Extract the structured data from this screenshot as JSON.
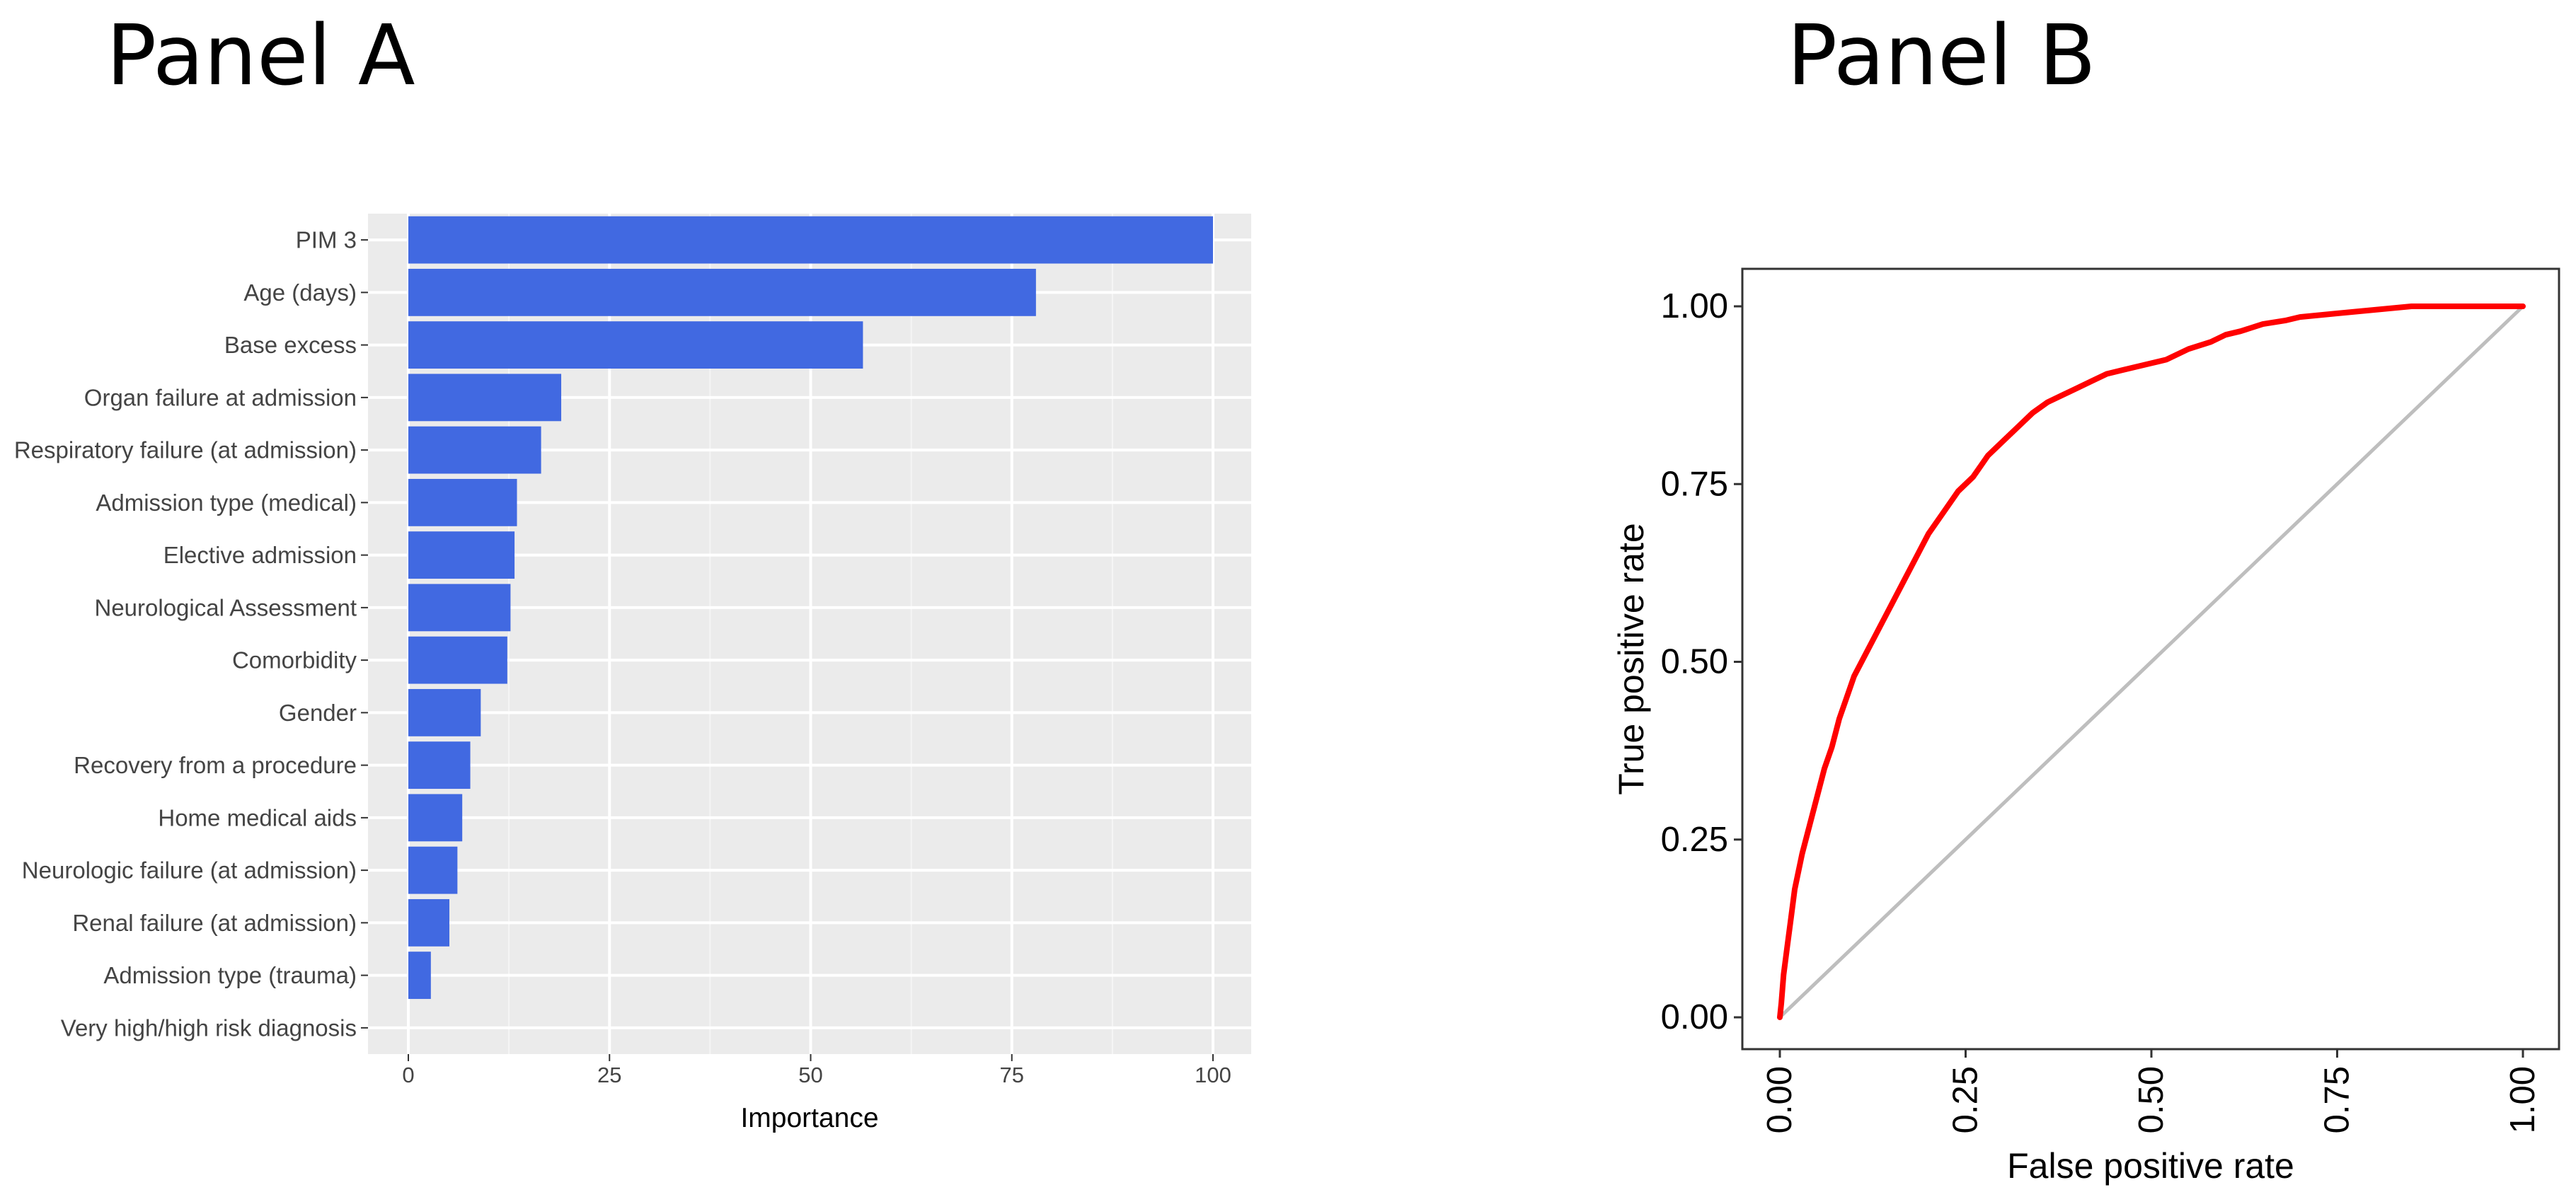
{
  "panels": {
    "a": {
      "title": "Panel A"
    },
    "b": {
      "title": "Panel B"
    }
  },
  "chart_data": [
    {
      "type": "bar",
      "orientation": "horizontal",
      "title": "",
      "xlabel": "Importance",
      "ylabel": "",
      "xlim": [
        0,
        100
      ],
      "xticks": [
        "0",
        "25",
        "50",
        "75",
        "100"
      ],
      "grid": true,
      "background": "#ebebeb",
      "bar_color": "#4169e1",
      "categories": [
        "PIM 3",
        "Age (days)",
        "Base excess",
        "Organ failure at admission",
        "Respiratory failure (at admission)",
        "Admission type (medical)",
        "Elective admission",
        "Neurological Assessment",
        "Comorbidity",
        "Gender",
        "Recovery from a procedure",
        "Home medical aids",
        "Neurologic failure (at admission)",
        "Renal failure (at admission)",
        "Admission type (trauma)",
        "Very high/high risk diagnosis"
      ],
      "values": [
        100,
        78,
        56.5,
        19,
        16.5,
        13.5,
        13.2,
        12.7,
        12.3,
        9,
        7.7,
        6.7,
        6.1,
        5.1,
        2.8,
        0
      ]
    },
    {
      "type": "line",
      "title": "",
      "xlabel": "False positive rate",
      "ylabel": "True positive rate",
      "xlim": [
        0,
        1
      ],
      "ylim": [
        0,
        1
      ],
      "xticks": [
        "0.00",
        "0.25",
        "0.50",
        "0.75",
        "1.00"
      ],
      "yticks": [
        "0.00",
        "0.25",
        "0.50",
        "0.75",
        "1.00"
      ],
      "grid": false,
      "series": [
        {
          "color": "#ff0000",
          "x": [
            0,
            0.002,
            0.005,
            0.01,
            0.015,
            0.02,
            0.03,
            0.04,
            0.05,
            0.06,
            0.07,
            0.08,
            0.09,
            0.1,
            0.11,
            0.12,
            0.13,
            0.14,
            0.15,
            0.16,
            0.17,
            0.18,
            0.19,
            0.2,
            0.22,
            0.24,
            0.26,
            0.28,
            0.3,
            0.32,
            0.34,
            0.36,
            0.38,
            0.4,
            0.42,
            0.44,
            0.46,
            0.48,
            0.5,
            0.52,
            0.55,
            0.58,
            0.6,
            0.62,
            0.65,
            0.68,
            0.7,
            0.75,
            0.8,
            0.85,
            0.9,
            0.95,
            1.0
          ],
          "y": [
            0,
            0.02,
            0.06,
            0.1,
            0.14,
            0.18,
            0.23,
            0.27,
            0.31,
            0.35,
            0.38,
            0.42,
            0.45,
            0.48,
            0.5,
            0.52,
            0.54,
            0.56,
            0.58,
            0.6,
            0.62,
            0.64,
            0.66,
            0.68,
            0.71,
            0.74,
            0.76,
            0.79,
            0.81,
            0.83,
            0.85,
            0.865,
            0.875,
            0.885,
            0.895,
            0.905,
            0.91,
            0.915,
            0.92,
            0.925,
            0.94,
            0.95,
            0.96,
            0.965,
            0.975,
            0.98,
            0.985,
            0.99,
            0.995,
            1.0,
            1.0,
            1.0,
            1.0
          ]
        },
        {
          "color": "#bebebe",
          "x": [
            0,
            1
          ],
          "y": [
            0,
            1
          ]
        }
      ]
    }
  ]
}
